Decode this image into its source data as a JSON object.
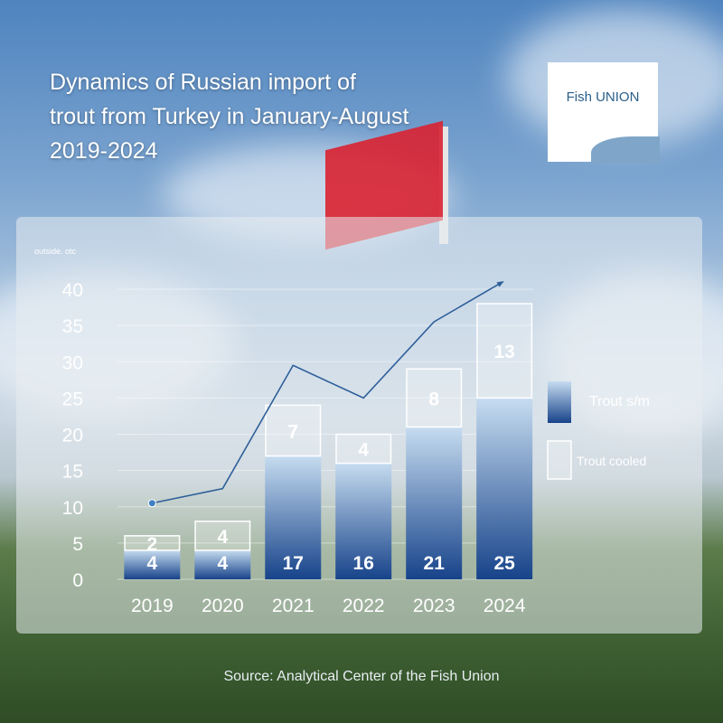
{
  "title": "Dynamics of Russian import of\n trout from Turkey in January-August\n2019-2024",
  "logo_text": "Fish UNION",
  "source": "Source: Analytical Center of the Fish Union",
  "colors": {
    "frozen_top": "#c6dcf0",
    "frozen_bottom": "#17438a",
    "cooled_fill": "rgba(255,255,255,0.25)",
    "line": "#2e5f9a"
  },
  "chart_data": {
    "type": "bar",
    "stacked": true,
    "unit_label": "outside. otc",
    "categories": [
      "2019",
      "2020",
      "2021",
      "2022",
      "2023",
      "2024"
    ],
    "series": [
      {
        "name": "Trout s/m",
        "values": [
          4,
          4,
          17,
          16,
          21,
          25
        ]
      },
      {
        "name": "Trout cooled",
        "values": [
          2,
          4,
          7,
          4,
          8,
          13
        ]
      }
    ],
    "trend_line": [
      10.5,
      12.5,
      29.5,
      25,
      35.5,
      41
    ],
    "ylim": [
      0,
      40
    ],
    "yticks": [
      0,
      5,
      10,
      15,
      20,
      25,
      30,
      35,
      40
    ],
    "legend_position": "right",
    "grid": true
  }
}
